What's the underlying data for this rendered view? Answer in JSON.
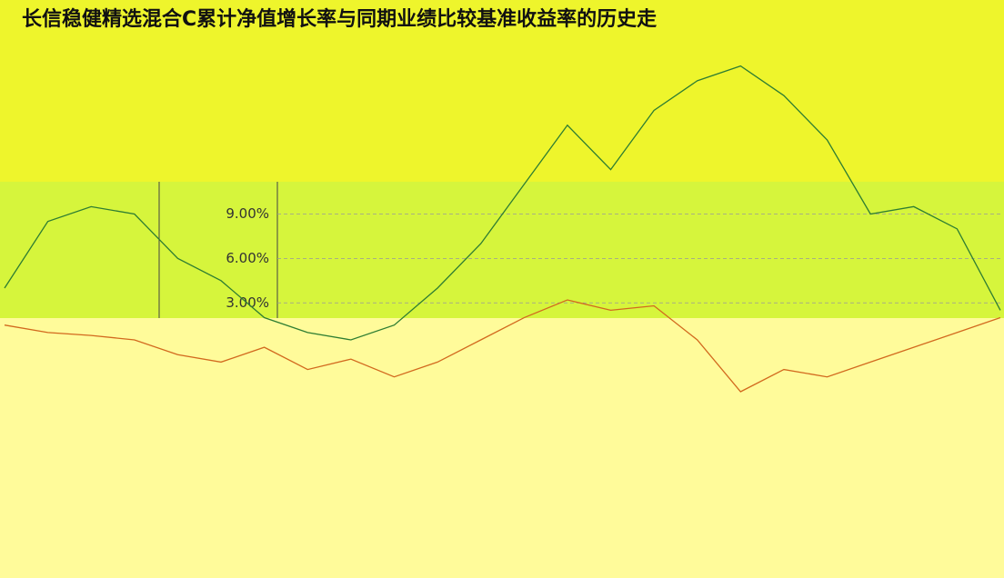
{
  "chart_data": {
    "type": "line",
    "title": "长信稳健精选混合C累计净值增长率与同期业绩比较基准收益率的历史走",
    "categories": [
      null,
      null,
      null,
      null,
      null,
      null,
      null,
      null,
      null,
      null,
      null,
      null,
      null,
      null,
      null,
      null,
      null,
      null,
      null,
      null,
      null,
      null,
      null,
      null
    ],
    "series": [
      {
        "color": "#2e7d32",
        "values": [
          4,
          8.5,
          9.5,
          9,
          6,
          4.5,
          2,
          1,
          0.5,
          1.5,
          4,
          7,
          11,
          15,
          12,
          16,
          18,
          19,
          17,
          14,
          9,
          9.5,
          8,
          2.5
        ]
      },
      {
        "color": "#d2691e",
        "values": [
          1.5,
          1,
          0.8,
          0.5,
          -0.5,
          -1,
          0,
          -1.5,
          -0.8,
          -2,
          -1,
          0.5,
          2,
          3.2,
          2.5,
          2.8,
          0.5,
          -3,
          -1.5,
          -2,
          -1,
          0,
          1,
          2
        ]
      }
    ],
    "ylim": [
      -14.6,
      21
    ],
    "yticks": [
      {
        "value": 3,
        "label": "3.00%"
      },
      {
        "value": 6,
        "label": "6.00%"
      },
      {
        "value": 9,
        "label": "9.00%"
      }
    ],
    "grid": true
  }
}
